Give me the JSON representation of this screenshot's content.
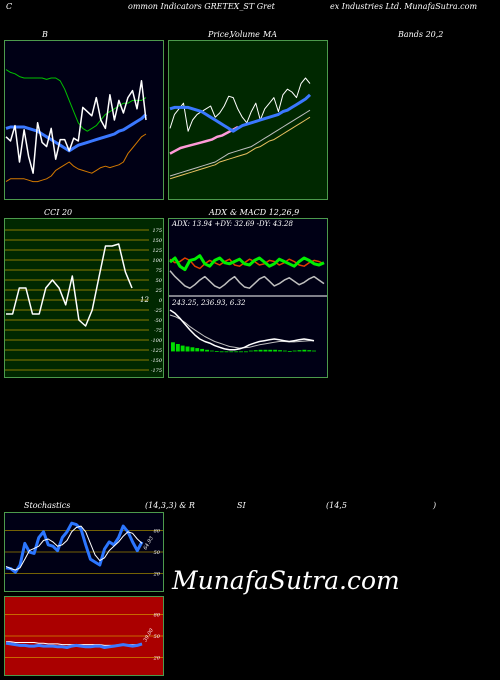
{
  "header": {
    "left": "C",
    "mid": "ommon  Indicators GRETEX_ST Gret",
    "right": "ex Industries Ltd. MunafaSutra.com"
  },
  "titles": {
    "bollinger": "B",
    "price": "Price,",
    "volume": "Volume",
    "ma": "MA",
    "bands": "Bands 20,2",
    "cci": "CCI 20",
    "adx": "ADX",
    "macd": "& MACD 12,26,9",
    "stoch": "Stochastics",
    "stoch_params": "(14,3,3) & R",
    "rsi": "SI",
    "rsi_params": "(14,5",
    "rsi_close": ")"
  },
  "adx_readout": "ADX: 13.94  +DY: 32.69 -DY: 43.28",
  "macd_readout": "243.25,  236.93,  6.32",
  "stoch_value_label": "64.93",
  "rsi_value_label": "39.00",
  "cci_value_label": "12",
  "watermark": "MunafaSutra.com",
  "colors": {
    "bollinger_bg": "#000015",
    "price_bg": "#002800",
    "cci_bg": "#002800",
    "adx_bg": "#000015",
    "stoch_bg": "#000015",
    "rsi_bg": "#aa0000",
    "border": "#4c9a4c",
    "cci_grid": "#8a7a00",
    "bb_upper": "#00c000",
    "bb_lower": "#d27800",
    "bb_mid": "#3a78ff",
    "price": "#ffffff",
    "ma_fast": "#bfbfbf",
    "ma_slow": "#e8c060",
    "volume": "#ff9ad8",
    "plus_di": "#00ee00",
    "minus_di": "#e33d00",
    "macd_hist": "#00dd00",
    "stoch_k": "#2c76ff",
    "rsi_line": "#3b78ff"
  },
  "chart_data": [
    {
      "type": "line",
      "name": "bollinger",
      "ylim": [
        0,
        100
      ],
      "series": [
        {
          "role": "upper",
          "values": [
            86,
            84,
            83,
            81,
            80,
            80,
            80,
            80,
            80,
            79,
            80,
            80,
            78,
            72,
            64,
            56,
            48,
            44,
            42,
            44,
            46,
            50,
            54,
            56,
            58,
            60,
            62,
            62,
            64,
            64,
            64,
            66
          ]
        },
        {
          "role": "middle",
          "values": [
            44,
            45,
            45,
            45,
            45,
            44,
            43,
            42,
            40,
            38,
            36,
            34,
            32,
            30,
            28,
            30,
            32,
            33,
            34,
            35,
            36,
            37,
            38,
            39,
            40,
            42,
            43,
            45,
            47,
            49,
            51,
            54
          ]
        },
        {
          "role": "lower",
          "values": [
            6,
            8,
            8,
            8,
            8,
            7,
            6,
            6,
            7,
            8,
            10,
            14,
            16,
            18,
            20,
            17,
            15,
            14,
            13,
            12,
            14,
            16,
            17,
            16,
            17,
            18,
            20,
            26,
            30,
            34,
            38,
            40
          ]
        },
        {
          "role": "close",
          "values": [
            38,
            35,
            46,
            20,
            43,
            24,
            12,
            48,
            34,
            31,
            44,
            22,
            36,
            36,
            28,
            37,
            35,
            59,
            56,
            53,
            66,
            50,
            44,
            68,
            50,
            64,
            55,
            66,
            71,
            58,
            78,
            50
          ]
        }
      ]
    },
    {
      "type": "line",
      "name": "price_ma",
      "ylim": [
        0,
        100
      ],
      "series": [
        {
          "role": "price",
          "values": [
            44,
            54,
            58,
            62,
            42,
            50,
            54,
            56,
            58,
            60,
            52,
            55,
            60,
            67,
            66,
            58,
            52,
            48,
            56,
            62,
            50,
            58,
            62,
            66,
            56,
            68,
            72,
            70,
            66,
            76,
            80,
            76
          ]
        },
        {
          "role": "ma_fast",
          "values": [
            10,
            11,
            12,
            13,
            14,
            15,
            16,
            17,
            18,
            19,
            20,
            22,
            24,
            26,
            27,
            28,
            29,
            30,
            31,
            33,
            35,
            37,
            39,
            41,
            43,
            45,
            47,
            49,
            51,
            53,
            55,
            57
          ]
        },
        {
          "role": "ma_slow",
          "values": [
            8,
            9,
            10,
            11,
            12,
            13,
            14,
            15,
            16,
            17,
            18,
            20,
            21,
            22,
            23,
            24,
            25,
            26,
            28,
            30,
            31,
            33,
            35,
            36,
            38,
            40,
            42,
            44,
            46,
            48,
            50,
            52
          ]
        },
        {
          "role": "volume",
          "values": [
            -4,
            -2,
            0,
            1,
            2,
            3,
            4,
            5,
            6,
            8,
            9,
            11,
            13,
            15
          ]
        }
      ]
    },
    {
      "type": "line",
      "name": "cci",
      "ylim": [
        -175,
        175
      ],
      "yticks": [
        175,
        150,
        125,
        100,
        75,
        50,
        25,
        0,
        -25,
        -50,
        -75,
        -100,
        -125,
        -150,
        -175
      ],
      "series": [
        {
          "role": "cci",
          "values": [
            -35,
            -35,
            30,
            30,
            -35,
            -35,
            30,
            50,
            30,
            -12,
            60,
            -50,
            -65,
            -25,
            55,
            135,
            135,
            140,
            70,
            30
          ]
        }
      ]
    },
    {
      "type": "line",
      "name": "adx_di",
      "ylim": [
        0,
        100
      ],
      "series": [
        {
          "role": "+DI",
          "values": [
            55,
            62,
            48,
            42,
            58,
            60,
            66,
            52,
            48,
            58,
            62,
            54,
            52,
            56,
            60,
            52,
            50,
            58,
            62,
            55,
            48,
            52,
            60,
            56,
            52,
            48,
            56,
            62,
            58,
            52,
            50,
            54
          ]
        },
        {
          "role": "-DI",
          "values": [
            60,
            54,
            56,
            62,
            58,
            48,
            44,
            52,
            58,
            54,
            50,
            56,
            60,
            50,
            48,
            54,
            60,
            56,
            50,
            52,
            58,
            56,
            50,
            54,
            60,
            56,
            50,
            48,
            54,
            58,
            56,
            52
          ]
        },
        {
          "role": "adx",
          "values": [
            40,
            30,
            22,
            14,
            10,
            16,
            24,
            30,
            22,
            14,
            10,
            16,
            24,
            30,
            20,
            12,
            10,
            18,
            26,
            30,
            22,
            14,
            18,
            24,
            28,
            22,
            16,
            20,
            26,
            30,
            24,
            18
          ]
        }
      ]
    },
    {
      "type": "line",
      "name": "macd",
      "ylim": [
        -40,
        100
      ],
      "series": [
        {
          "role": "macd",
          "values": [
            100,
            92,
            80,
            66,
            52,
            40,
            30,
            24,
            20,
            14,
            10,
            6,
            4,
            4,
            6,
            10,
            16,
            20,
            24,
            26,
            28,
            30,
            28,
            26,
            24,
            26,
            28,
            30,
            28,
            26
          ]
        },
        {
          "role": "signal",
          "values": [
            88,
            84,
            78,
            70,
            60,
            52,
            44,
            36,
            30,
            24,
            20,
            16,
            12,
            10,
            8,
            9,
            10,
            13,
            16,
            18,
            20,
            22,
            24,
            24,
            23,
            23,
            24,
            25,
            26,
            26
          ]
        },
        {
          "role": "histogram",
          "values": [
            22,
            18,
            14,
            12,
            10,
            8,
            6,
            4,
            2,
            1,
            0,
            0,
            -1,
            -2,
            -2,
            0,
            2,
            3,
            4,
            4,
            4,
            4,
            3,
            2,
            1,
            2,
            3,
            4,
            3,
            2
          ]
        }
      ]
    },
    {
      "type": "line",
      "name": "stochastics",
      "ylim": [
        0,
        100
      ],
      "yticks": [
        80,
        50,
        20
      ],
      "series": [
        {
          "role": "%K",
          "values": [
            28,
            27,
            22,
            32,
            62,
            50,
            48,
            70,
            78,
            60,
            58,
            52,
            70,
            78,
            90,
            88,
            82,
            60,
            40,
            36,
            32,
            54,
            64,
            60,
            70,
            86,
            78,
            64,
            52,
            64
          ]
        },
        {
          "role": "%D",
          "values": [
            30,
            27,
            25,
            28,
            40,
            52,
            55,
            58,
            66,
            68,
            64,
            58,
            60,
            66,
            78,
            84,
            86,
            78,
            62,
            46,
            38,
            42,
            52,
            58,
            64,
            72,
            78,
            76,
            68,
            62
          ]
        }
      ]
    },
    {
      "type": "line",
      "name": "rsi",
      "ylim": [
        0,
        100
      ],
      "yticks": [
        80,
        50,
        20
      ],
      "series": [
        {
          "role": "rsi",
          "values": [
            40,
            39,
            38,
            37,
            37,
            36,
            36,
            37,
            36,
            36,
            36,
            35,
            35,
            34,
            36,
            37,
            36,
            35,
            35,
            36,
            36,
            34,
            35,
            36,
            37,
            38,
            37,
            36,
            37,
            39
          ]
        },
        {
          "role": "rsi_ma",
          "values": [
            42,
            42,
            41,
            41,
            41,
            41,
            41,
            40,
            40,
            39,
            39,
            39,
            38,
            38,
            38,
            38,
            38,
            38,
            38,
            38,
            38,
            37,
            37,
            37,
            38,
            38,
            38,
            38,
            38,
            39
          ]
        }
      ]
    }
  ]
}
